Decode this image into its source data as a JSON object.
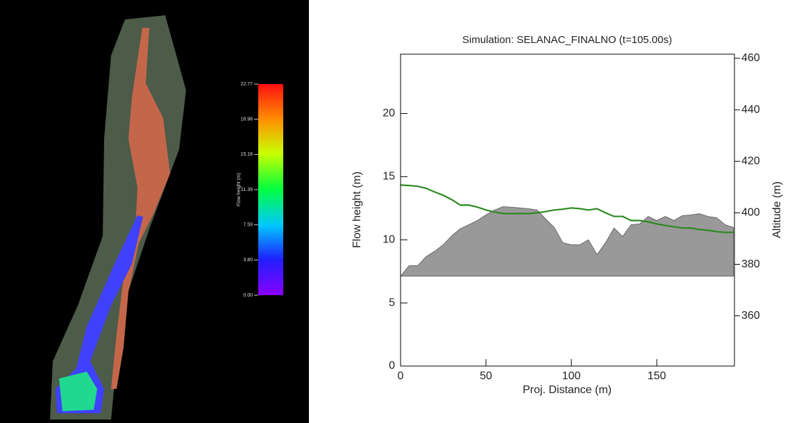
{
  "map": {
    "colorbar": {
      "label": "Flow height (m)",
      "lim": [
        0,
        22.77
      ],
      "ticks": [
        {
          "value": 0,
          "label": "0.00"
        },
        {
          "value": 3.8,
          "label": "3.80"
        },
        7.59,
        11.39,
        15.18,
        18.98,
        22.77
      ]
    }
  },
  "chart_data": {
    "type": "area-line",
    "title": "Simulation: SELANAC_FINALNO  (t=105.00s)",
    "x_label": "Proj. Distance (m)",
    "y_label": "Flow height (m)",
    "y2_label": "Altitude (m)",
    "x": [
      0,
      5,
      10,
      15,
      20,
      25,
      30,
      35,
      40,
      45,
      50,
      55,
      60,
      65,
      70,
      75,
      80,
      85,
      90,
      95,
      100,
      105,
      110,
      115,
      120,
      125,
      130,
      135,
      140,
      145,
      150,
      155,
      160,
      165,
      170,
      175,
      180,
      185,
      190,
      195
    ],
    "xlim": [
      0,
      195.5
    ],
    "xticks": [
      0,
      50,
      100,
      150
    ],
    "ylim": [
      0,
      24.7
    ],
    "yticks": [
      0,
      5,
      10,
      15,
      20
    ],
    "y2lim": [
      340.5,
      461.6
    ],
    "y2ticks": [
      360,
      380,
      400,
      420,
      440,
      460
    ],
    "series": [
      {
        "kind": "area",
        "axis": "y2",
        "color": "#999999",
        "values": [
          375.4,
          379.5,
          379.5,
          383.0,
          385.1,
          387.6,
          391.1,
          393.8,
          395.4,
          397.0,
          399.2,
          401.1,
          402.4,
          402.2,
          401.9,
          401.6,
          401.1,
          397.6,
          394.3,
          388.4,
          387.6,
          387.6,
          389.5,
          383.8,
          388.4,
          394.1,
          390.8,
          395.4,
          395.7,
          398.6,
          397.0,
          398.6,
          397.0,
          398.9,
          399.2,
          399.7,
          398.6,
          398.1,
          395.4,
          394.3
        ]
      },
      {
        "kind": "line",
        "axis": "y2",
        "color": "#2a8a1e",
        "values": [
          410.8,
          410.6,
          410.3,
          409.5,
          408.1,
          406.8,
          405.1,
          403.0,
          403.0,
          402.2,
          401.1,
          400.3,
          399.7,
          399.7,
          399.7,
          399.7,
          400.0,
          400.5,
          401.1,
          401.4,
          401.9,
          401.6,
          401.1,
          401.6,
          400.0,
          398.6,
          398.6,
          397.0,
          397.0,
          396.5,
          395.7,
          395.1,
          394.6,
          394.1,
          394.1,
          393.5,
          393.2,
          392.7,
          392.4,
          392.4
        ]
      }
    ]
  }
}
